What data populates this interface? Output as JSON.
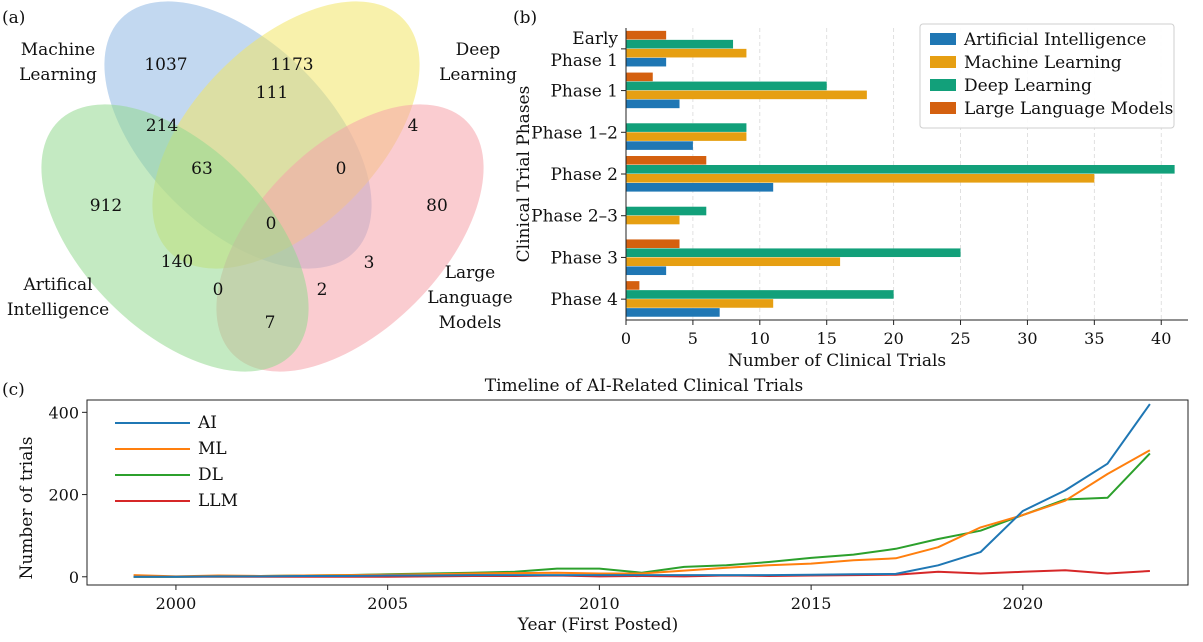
{
  "panels": {
    "a": "(a)",
    "b": "(b)",
    "c": "(c)"
  },
  "chart_data": [
    {
      "type": "venn",
      "sets": [
        {
          "label_lines": [
            "Machine",
            "Learning"
          ],
          "color": "#8fb8e3"
        },
        {
          "label_lines": [
            "Deep",
            "Learning"
          ],
          "color": "#f3e566"
        },
        {
          "label_lines": [
            "Large",
            "Language",
            "Models"
          ],
          "color": "#f5a3aa"
        },
        {
          "label_lines": [
            "Artifical",
            "Intelligence"
          ],
          "color": "#94d98f"
        }
      ],
      "regions": [
        {
          "sets": [
            "ML"
          ],
          "value": 1037
        },
        {
          "sets": [
            "DL"
          ],
          "value": 1173
        },
        {
          "sets": [
            "ML",
            "DL"
          ],
          "value": 111
        },
        {
          "sets": [
            "DL",
            "LLM"
          ],
          "value": 4
        },
        {
          "sets": [
            "AI",
            "ML"
          ],
          "value": 214
        },
        {
          "sets": [
            "AI",
            "ML",
            "DL"
          ],
          "value": 63
        },
        {
          "sets": [
            "ML",
            "DL",
            "LLM"
          ],
          "value": 0
        },
        {
          "sets": [
            "AI"
          ],
          "value": 912
        },
        {
          "sets": [
            "AI",
            "ML",
            "DL",
            "LLM"
          ],
          "value": 0
        },
        {
          "sets": [
            "LLM"
          ],
          "value": 80
        },
        {
          "sets": [
            "AI",
            "DL"
          ],
          "value": 140
        },
        {
          "sets": [
            "AI",
            "DL",
            "LLM"
          ],
          "value": 3
        },
        {
          "sets": [
            "AI",
            "ML",
            "LLM"
          ],
          "value": 0
        },
        {
          "sets": [
            "ML",
            "LLM"
          ],
          "value": 2
        },
        {
          "sets": [
            "AI",
            "LLM"
          ],
          "value": 7
        }
      ]
    },
    {
      "type": "bar",
      "orientation": "horizontal",
      "categories": [
        [
          "Early",
          "Phase 1"
        ],
        [
          "Phase 1"
        ],
        [
          "Phase 1–2"
        ],
        [
          "Phase 2"
        ],
        [
          "Phase 2–3"
        ],
        [
          "Phase 3"
        ],
        [
          "Phase 4"
        ]
      ],
      "series": [
        {
          "name": "Artificial Intelligence",
          "color": "#1f77b4",
          "values": [
            3,
            4,
            5,
            11,
            0,
            3,
            7
          ]
        },
        {
          "name": "Machine Learning",
          "color": "#e69f12",
          "values": [
            9,
            18,
            9,
            35,
            4,
            16,
            11
          ]
        },
        {
          "name": "Deep Learning",
          "color": "#12a07a",
          "values": [
            8,
            15,
            9,
            41,
            6,
            25,
            20
          ]
        },
        {
          "name": "Large Language Models",
          "color": "#d4600f",
          "values": [
            3,
            2,
            0,
            6,
            0,
            4,
            1
          ]
        }
      ],
      "xlabel": "Number of Clinical Trials",
      "ylabel": "Clinical Trial Phases",
      "xlim": [
        0,
        42
      ],
      "xticks": [
        0,
        5,
        10,
        15,
        20,
        25,
        30,
        35,
        40
      ],
      "grid": "x",
      "legend": "top-right"
    },
    {
      "type": "line",
      "title": "Timeline of AI-Related Clinical Trials",
      "xlabel": "Year (First Posted)",
      "ylabel": "Number of trials",
      "xlim": [
        1997.9,
        2023.9
      ],
      "ylim": [
        -20,
        430
      ],
      "xticks": [
        2000,
        2005,
        2010,
        2015,
        2020
      ],
      "yticks": [
        0,
        200,
        400
      ],
      "legend": "top-left",
      "x": [
        1999,
        2000,
        2001,
        2002,
        2003,
        2004,
        2005,
        2006,
        2007,
        2008,
        2009,
        2010,
        2011,
        2012,
        2013,
        2014,
        2015,
        2016,
        2017,
        2018,
        2019,
        2020,
        2021,
        2022,
        2023
      ],
      "series": [
        {
          "name": "AI",
          "color": "#1f77b4",
          "values": [
            0,
            0,
            1,
            1,
            2,
            2,
            3,
            3,
            4,
            4,
            4,
            4,
            4,
            4,
            4,
            4,
            5,
            6,
            7,
            28,
            60,
            160,
            210,
            275,
            420
          ]
        },
        {
          "name": "ML",
          "color": "#ff7f0e",
          "values": [
            4,
            1,
            3,
            2,
            3,
            4,
            5,
            6,
            8,
            9,
            10,
            8,
            8,
            15,
            22,
            28,
            32,
            40,
            45,
            72,
            120,
            150,
            185,
            250,
            308
          ]
        },
        {
          "name": "DL",
          "color": "#2ca02c",
          "values": [
            0,
            0,
            1,
            2,
            3,
            4,
            6,
            8,
            10,
            12,
            20,
            20,
            10,
            24,
            28,
            36,
            46,
            54,
            68,
            92,
            112,
            150,
            188,
            192,
            300
          ]
        },
        {
          "name": "LLM",
          "color": "#d62728",
          "values": [
            0,
            0,
            0,
            0,
            0,
            0,
            0,
            1,
            2,
            2,
            3,
            1,
            2,
            1,
            3,
            2,
            3,
            4,
            5,
            12,
            8,
            12,
            16,
            8,
            14
          ]
        }
      ]
    }
  ]
}
